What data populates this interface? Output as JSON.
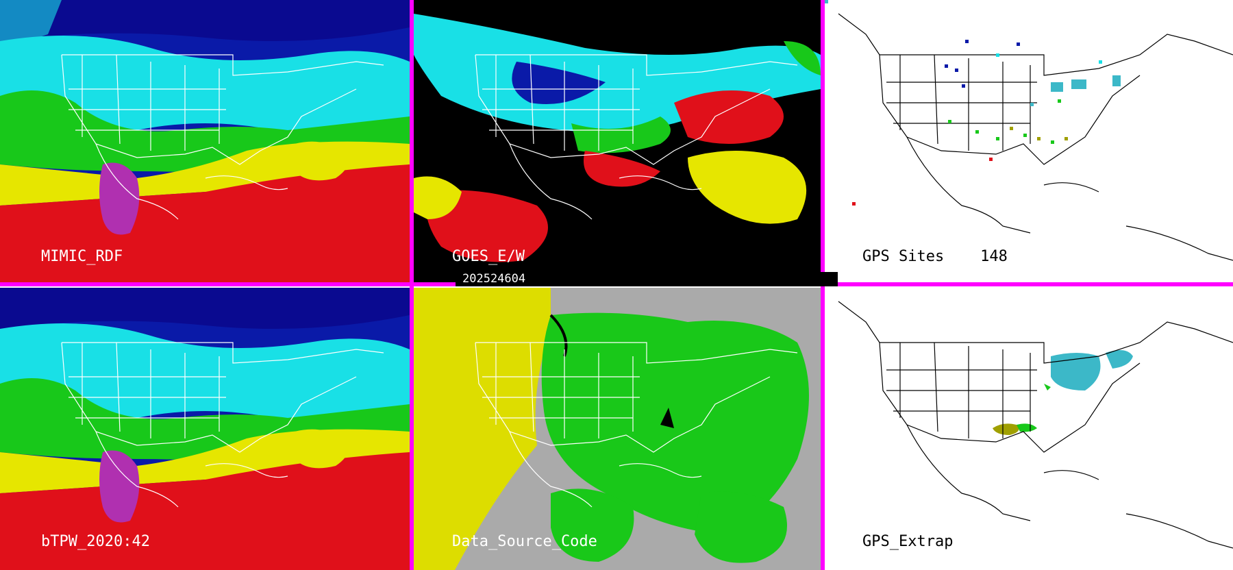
{
  "panels": [
    {
      "label": "MIMIC_RDF"
    },
    {
      "label": "GOES_E/W"
    },
    {
      "label": "GPS Sites    148"
    },
    {
      "label": "bTPW_2020:42"
    },
    {
      "label": "Data_Source_Code"
    },
    {
      "label": "GPS_Extrap"
    }
  ],
  "timestamp": "202524604",
  "colors": {
    "divider": "#ff00ff",
    "tpw_blue": "#0a1aa8",
    "tpw_cyan": "#19e0e6",
    "tpw_green": "#18c81a",
    "tpw_yellow": "#e6e600",
    "tpw_red": "#e0101a",
    "tpw_magenta": "#b030b0",
    "source_gray": "#aaaaaa",
    "source_yellow": "#dddd00",
    "source_green": "#19c819"
  }
}
